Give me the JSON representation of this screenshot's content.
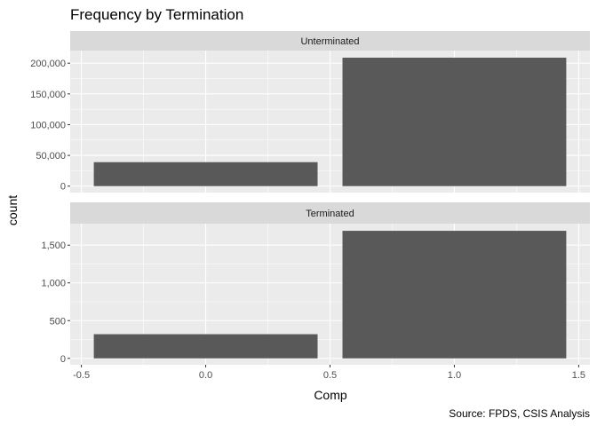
{
  "chart_data": {
    "type": "bar",
    "title": "Frequency by Termination",
    "xlabel": "Comp",
    "ylabel": "count",
    "caption": "Source: FPDS, CSIS Analysis",
    "x_ticks": [
      "-0.5",
      "0.0",
      "0.5",
      "1.0",
      "1.5"
    ],
    "xlim": [
      -0.545,
      1.545
    ],
    "grid": true,
    "panels": [
      {
        "name": "Unterminated",
        "bars": [
          {
            "x": 0,
            "value": 39000
          },
          {
            "x": 1,
            "value": 209000
          }
        ],
        "ylim": [
          0,
          210000
        ],
        "y_ticks": [
          {
            "value": 0,
            "label": "0"
          },
          {
            "value": 50000,
            "label": "50,000"
          },
          {
            "value": 100000,
            "label": "100,000"
          },
          {
            "value": 150000,
            "label": "150,000"
          },
          {
            "value": 200000,
            "label": "200,000"
          }
        ]
      },
      {
        "name": "Terminated",
        "bars": [
          {
            "x": 0,
            "value": 320
          },
          {
            "x": 1,
            "value": 1690
          }
        ],
        "ylim": [
          0,
          1700
        ],
        "y_ticks": [
          {
            "value": 0,
            "label": "0"
          },
          {
            "value": 500,
            "label": "500"
          },
          {
            "value": 1000,
            "label": "1,000"
          },
          {
            "value": 1500,
            "label": "1,500"
          }
        ]
      }
    ],
    "colors": {
      "bar": "#595959",
      "panel_bg": "#ebebeb",
      "strip_bg": "#d9d9d9",
      "grid": "#ffffff",
      "tick": "#333333"
    }
  }
}
